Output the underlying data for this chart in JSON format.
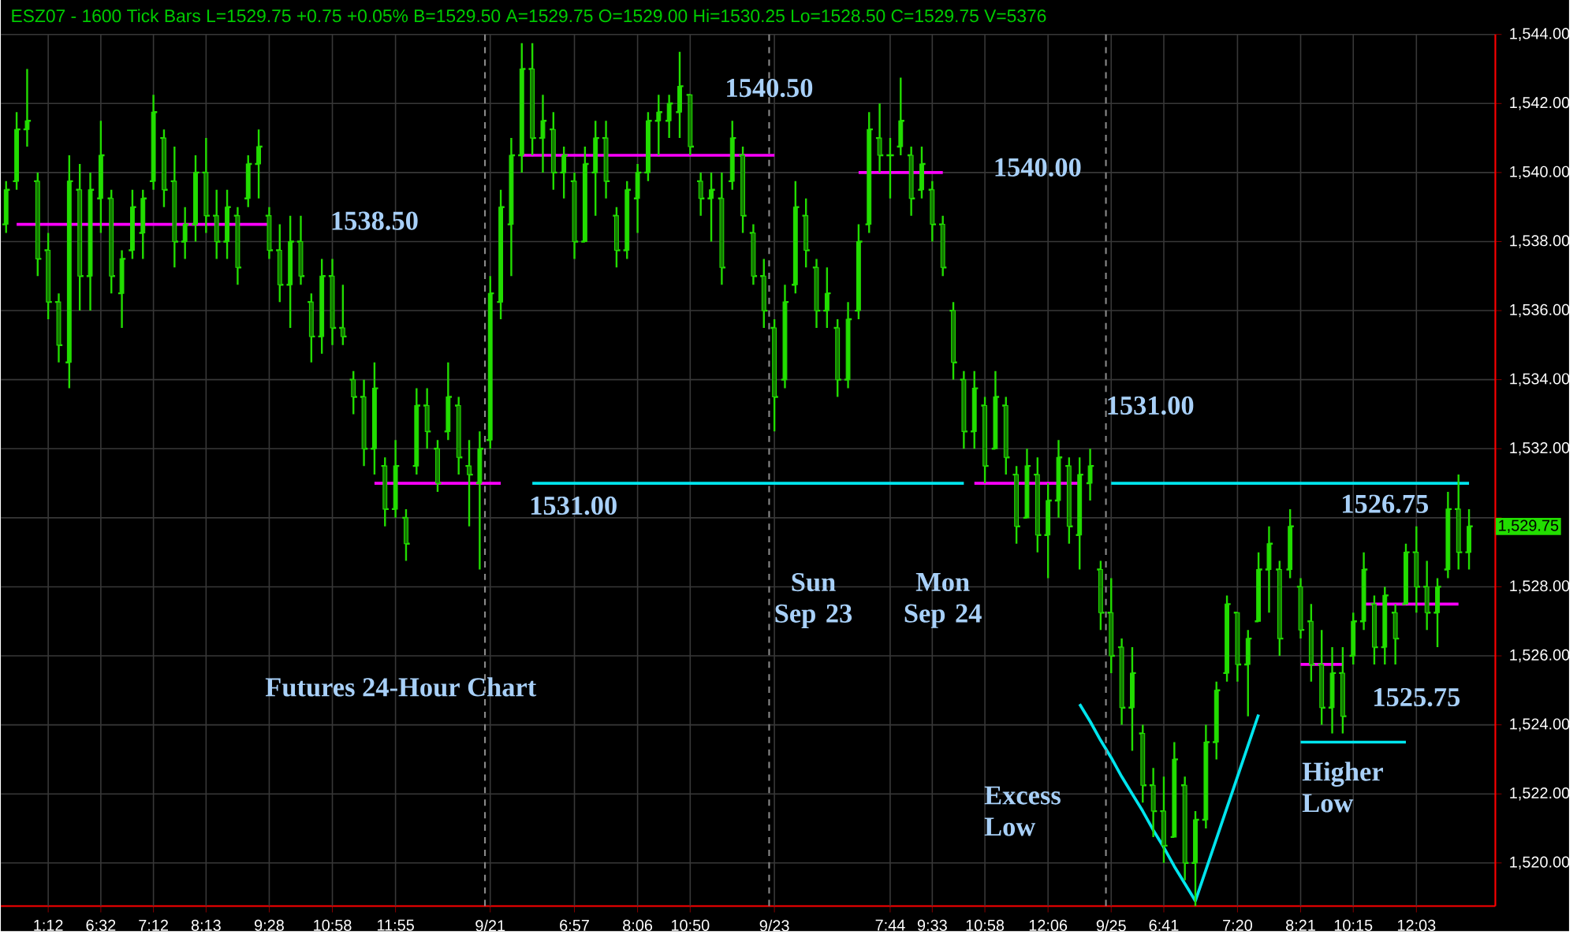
{
  "chart_data": {
    "type": "candlestick",
    "title": "ESZ07 - 1600 Tick Bars L=1529.75 +0.75 +0.05% B=1529.50 A=1529.75 O=1529.00 Hi=1530.25 Lo=1528.50 C=1529.75 V=5376",
    "subtitle": "Futures 24-Hour Chart",
    "categories": [
      null,
      null,
      null,
      null,
      "1:12",
      null,
      null,
      null,
      null,
      "6:32",
      null,
      null,
      null,
      null,
      "7:12",
      null,
      null,
      null,
      null,
      "8:13",
      null,
      null,
      null,
      null,
      null,
      "9:28",
      null,
      null,
      null,
      null,
      null,
      "10:58",
      null,
      null,
      null,
      null,
      null,
      "11:55",
      null,
      null,
      null,
      null,
      null,
      null,
      null,
      null,
      "9/21",
      null,
      null,
      null,
      null,
      null,
      null,
      null,
      "6:57",
      null,
      null,
      null,
      null,
      null,
      "8:06",
      null,
      null,
      null,
      null,
      "10:50",
      null,
      null,
      null,
      null,
      null,
      null,
      null,
      "9/23",
      null,
      null,
      null,
      null,
      null,
      null,
      null,
      null,
      null,
      null,
      "7:44",
      null,
      null,
      null,
      "9:33",
      null,
      null,
      null,
      null,
      "10:58",
      null,
      null,
      null,
      null,
      null,
      "12:06",
      null,
      null,
      null,
      null,
      null,
      "9/25",
      null,
      null,
      null,
      null,
      "6:41",
      null,
      null,
      null,
      null,
      null,
      null,
      "7:20",
      null,
      null,
      null,
      null,
      null,
      "8:21",
      null,
      null,
      null,
      null,
      "10:15",
      null,
      null,
      null,
      null,
      null,
      "12:03",
      null,
      null,
      null,
      null,
      null
    ],
    "color": "#22dd00",
    "ohlc": [
      [
        1538.5,
        1539.75,
        1538.25,
        1539.5
      ],
      [
        1539.75,
        1541.75,
        1539.5,
        1541.25
      ],
      [
        1541.25,
        1543,
        1540.75,
        1541.5
      ],
      [
        1539.75,
        1540,
        1537,
        1537.5
      ],
      [
        1537.75,
        1538.25,
        1535.75,
        1536.25
      ],
      [
        1536.25,
        1536.5,
        1534.5,
        1535
      ],
      [
        1534.5,
        1540.5,
        1533.75,
        1539.75
      ],
      [
        1539.5,
        1540.25,
        1536,
        1537
      ],
      [
        1537,
        1540,
        1536,
        1539.5
      ],
      [
        1539.25,
        1541.5,
        1538.25,
        1540.5
      ],
      [
        1539.25,
        1539.5,
        1536.5,
        1537
      ],
      [
        1536.5,
        1537.75,
        1535.5,
        1537.5
      ],
      [
        1537.75,
        1539.5,
        1537.5,
        1539
      ],
      [
        1538.25,
        1539.5,
        1537.5,
        1539.25
      ],
      [
        1539.75,
        1542.25,
        1539.5,
        1541.75
      ],
      [
        1541,
        1541.25,
        1539,
        1539.5
      ],
      [
        1539.75,
        1540.75,
        1537.25,
        1538
      ],
      [
        1538,
        1539,
        1537.5,
        1538.5
      ],
      [
        1538.5,
        1540.5,
        1538,
        1540
      ],
      [
        1540,
        1541,
        1538.25,
        1538.75
      ],
      [
        1538.75,
        1539.5,
        1537.5,
        1538
      ],
      [
        1538,
        1539.5,
        1537.5,
        1539
      ],
      [
        1538.75,
        1539,
        1536.75,
        1537.25
      ],
      [
        1539.25,
        1540.5,
        1539,
        1540.25
      ],
      [
        1540.25,
        1541.25,
        1539.25,
        1540.75
      ],
      [
        1538.75,
        1539,
        1537.5,
        1537.75
      ],
      [
        1537.75,
        1538.5,
        1536.25,
        1536.75
      ],
      [
        1536.75,
        1538.75,
        1535.5,
        1538
      ],
      [
        1538,
        1538.75,
        1536.75,
        1537
      ],
      [
        1536.25,
        1536.5,
        1534.5,
        1535.25
      ],
      [
        1535.25,
        1537.5,
        1534.75,
        1537
      ],
      [
        1537,
        1537.5,
        1535,
        1535.5
      ],
      [
        1535.5,
        1536.75,
        1535,
        1535.25
      ],
      [
        1534,
        1534.25,
        1533,
        1533.5
      ],
      [
        1533.5,
        1534,
        1531.5,
        1532
      ],
      [
        1532,
        1534.5,
        1531.25,
        1533.75
      ],
      [
        1531.5,
        1531.75,
        1529.75,
        1530.25
      ],
      [
        1530.25,
        1532.25,
        1530,
        1531.5
      ],
      [
        1530,
        1530.25,
        1528.75,
        1529.25
      ],
      [
        1531.5,
        1533.75,
        1531.25,
        1533.25
      ],
      [
        1533.25,
        1533.75,
        1532,
        1532.5
      ],
      [
        1532,
        1532.25,
        1530.75,
        1531
      ],
      [
        1532.5,
        1534.5,
        1532.25,
        1533.5
      ],
      [
        1533.25,
        1533.5,
        1531.25,
        1531.75
      ],
      [
        1531.5,
        1532.25,
        1529.75,
        1531.25
      ],
      [
        1531,
        1532.5,
        1528.5,
        1532
      ],
      [
        1532.25,
        1537,
        1532,
        1536.5
      ],
      [
        1536.25,
        1539.5,
        1535.75,
        1539
      ],
      [
        1538.5,
        1541,
        1537,
        1540.5
      ],
      [
        1540.5,
        1543.75,
        1540,
        1543
      ],
      [
        1543,
        1543.75,
        1540.5,
        1541
      ],
      [
        1541,
        1542.25,
        1540,
        1541.5
      ],
      [
        1541.25,
        1541.75,
        1539.5,
        1540
      ],
      [
        1540,
        1540.75,
        1539.25,
        1540.5
      ],
      [
        1539.75,
        1540,
        1537.5,
        1538
      ],
      [
        1538,
        1540.75,
        1538,
        1540.25
      ],
      [
        1540,
        1541.5,
        1538.75,
        1541
      ],
      [
        1541,
        1541.5,
        1539.25,
        1539.75
      ],
      [
        1538.75,
        1539,
        1537.25,
        1537.75
      ],
      [
        1537.75,
        1539.75,
        1537.5,
        1539.5
      ],
      [
        1539.25,
        1540.25,
        1538.25,
        1540
      ],
      [
        1540,
        1541.75,
        1539.75,
        1541.5
      ],
      [
        1541.5,
        1542.25,
        1540.5,
        1541.75
      ],
      [
        1541.5,
        1542.25,
        1541,
        1542
      ],
      [
        1541.75,
        1543.5,
        1541,
        1542.5
      ],
      [
        1542.25,
        1542.25,
        1540.5,
        1540.75
      ],
      [
        1539.75,
        1540,
        1538.75,
        1539.25
      ],
      [
        1539.25,
        1540,
        1538,
        1539.5
      ],
      [
        1539.25,
        1540,
        1536.75,
        1537.25
      ],
      [
        1539.75,
        1541.5,
        1539.5,
        1541
      ],
      [
        1540.5,
        1540.75,
        1538.25,
        1538.75
      ],
      [
        1538.25,
        1538.5,
        1536.75,
        1537
      ],
      [
        1537,
        1537.5,
        1535.5,
        1536
      ],
      [
        1535.5,
        1535.75,
        1532.5,
        1533.5
      ],
      [
        1534,
        1536.75,
        1533.75,
        1536.25
      ],
      [
        1536.75,
        1539.75,
        1536.5,
        1539
      ],
      [
        1538.75,
        1539.25,
        1537.25,
        1537.75
      ],
      [
        1537.25,
        1537.5,
        1535.5,
        1536
      ],
      [
        1536,
        1537.25,
        1535.5,
        1536.5
      ],
      [
        1535.5,
        1535.75,
        1533.5,
        1534
      ],
      [
        1534,
        1536.25,
        1533.75,
        1535.75
      ],
      [
        1536,
        1538.5,
        1535.75,
        1538
      ],
      [
        1538.5,
        1541.75,
        1538.25,
        1541.25
      ],
      [
        1541,
        1542,
        1540,
        1540.5
      ],
      [
        1540.5,
        1541,
        1539.25,
        1540.5
      ],
      [
        1540.75,
        1542.75,
        1540.5,
        1541.5
      ],
      [
        1540.5,
        1540.75,
        1538.75,
        1539.25
      ],
      [
        1539.5,
        1540.75,
        1539.25,
        1540.25
      ],
      [
        1539.5,
        1539.75,
        1538,
        1538.5
      ],
      [
        1538.5,
        1538.75,
        1537,
        1537.25
      ],
      [
        1536,
        1536.25,
        1534,
        1534.5
      ],
      [
        1534,
        1534.25,
        1532,
        1532.5
      ],
      [
        1532.5,
        1534.25,
        1532,
        1533.75
      ],
      [
        1533.25,
        1533.5,
        1531,
        1531.5
      ],
      [
        1532,
        1534.25,
        1532,
        1533.5
      ],
      [
        1533.25,
        1533.5,
        1531.25,
        1531.75
      ],
      [
        1531.25,
        1531.5,
        1529.25,
        1529.75
      ],
      [
        1530,
        1532,
        1530,
        1531.5
      ],
      [
        1531.25,
        1531.75,
        1529,
        1529.5
      ],
      [
        1529.5,
        1531,
        1528.25,
        1530.5
      ],
      [
        1530.5,
        1532.25,
        1530,
        1531.75
      ],
      [
        1531.5,
        1531.75,
        1529.25,
        1529.75
      ],
      [
        1529.5,
        1531.75,
        1528.5,
        1531.25
      ],
      [
        1531,
        1532,
        1530.5,
        1531.5
      ],
      [
        1528.5,
        1528.75,
        1526.75,
        1527.25
      ],
      [
        1527.25,
        1528.25,
        1525.5,
        1526
      ],
      [
        1526.25,
        1526.5,
        1524,
        1524.5
      ],
      [
        1524.5,
        1526.25,
        1523.25,
        1525.5
      ],
      [
        1523.75,
        1524,
        1521.75,
        1522.25
      ],
      [
        1522.25,
        1522.75,
        1520.75,
        1521.5
      ],
      [
        1521.5,
        1522.5,
        1520,
        1520.5
      ],
      [
        1520.75,
        1523.5,
        1520.75,
        1523
      ],
      [
        1522.25,
        1522.5,
        1519.5,
        1520
      ],
      [
        1520,
        1521.5,
        1518.75,
        1521.25
      ],
      [
        1521.25,
        1524,
        1521,
        1523.5
      ],
      [
        1523.5,
        1525.25,
        1523,
        1525
      ],
      [
        1525.5,
        1527.75,
        1525.25,
        1527.5
      ],
      [
        1527.25,
        1527.25,
        1525.25,
        1525.75
      ],
      [
        1525.75,
        1526.75,
        1524.25,
        1526.5
      ],
      [
        1527,
        1529,
        1527,
        1528.5
      ],
      [
        1528.5,
        1529.75,
        1527.25,
        1529.25
      ],
      [
        1528.5,
        1528.75,
        1526,
        1526.5
      ],
      [
        1528.5,
        1530.25,
        1528.25,
        1529.75
      ],
      [
        1528,
        1528.25,
        1526.5,
        1526.75
      ],
      [
        1527,
        1527.5,
        1525.25,
        1525.75
      ],
      [
        1525.75,
        1526.75,
        1524,
        1524.5
      ],
      [
        1524.5,
        1526.25,
        1523.75,
        1525.5
      ],
      [
        1525.5,
        1526.25,
        1523.75,
        1524.25
      ],
      [
        1526,
        1527.25,
        1525.75,
        1527
      ],
      [
        1527,
        1529,
        1526.75,
        1528.5
      ],
      [
        1527.5,
        1527.75,
        1525.75,
        1526.25
      ],
      [
        1526.25,
        1528,
        1525.75,
        1527.75
      ],
      [
        1527.25,
        1527.5,
        1525.75,
        1526.5
      ],
      [
        1527.5,
        1529.25,
        1527.5,
        1529
      ],
      [
        1529,
        1529.75,
        1527.25,
        1528
      ],
      [
        1528,
        1528.75,
        1526.75,
        1527.25
      ],
      [
        1527.25,
        1528.25,
        1526.25,
        1528
      ],
      [
        1528.5,
        1530.75,
        1528.25,
        1530.25
      ],
      [
        1530.25,
        1531.25,
        1528.5,
        1529
      ],
      [
        1529,
        1530.25,
        1528.5,
        1529.75
      ]
    ],
    "series": [
      {
        "type": "line",
        "color": "#ff00ff",
        "values": [
          null,
          1538.5,
          1538.5,
          1538.5,
          1538.5,
          1538.5,
          1538.5,
          1538.5,
          1538.5,
          1538.5,
          1538.5,
          1538.5,
          1538.5,
          1538.5,
          1538.5,
          1538.5,
          1538.5,
          1538.5,
          1538.5,
          1538.5,
          1538.5,
          1538.5,
          1538.5,
          1538.5,
          1538.5,
          1538.5,
          null,
          null,
          null,
          null,
          null,
          null,
          null,
          null,
          null,
          1531,
          1531,
          1531,
          1531,
          1531,
          1531,
          1531,
          1531,
          1531,
          1531,
          1531,
          1531,
          1531,
          null,
          1540.5,
          1540.5,
          1540.5,
          1540.5,
          1540.5,
          1540.5,
          1540.5,
          1540.5,
          1540.5,
          1540.5,
          1540.5,
          1540.5,
          1540.5,
          1540.5,
          1540.5,
          1540.5,
          1540.5,
          1540.5,
          1540.5,
          1540.5,
          1540.5,
          1540.5,
          1540.5,
          1540.5,
          1540.5,
          null,
          null,
          null,
          null,
          null,
          null,
          null,
          1540,
          1540,
          1540,
          1540,
          1540,
          1540,
          1540,
          1540,
          1540,
          null,
          null,
          1531,
          1531,
          1531,
          1531,
          1531,
          1531,
          1531,
          1531,
          1531,
          1531,
          1531,
          null,
          null,
          null,
          null,
          null,
          null,
          null,
          null,
          null,
          null,
          null,
          null,
          null,
          null,
          null,
          null,
          null,
          null,
          null,
          null,
          1525.75,
          1525.75,
          1525.75,
          1525.75,
          1525.75,
          null,
          1527.5,
          1527.5,
          1527.5,
          1527.5,
          1527.5,
          1527.5,
          1527.5,
          1527.5,
          1527.5,
          1527.5,
          null
        ]
      },
      {
        "type": "line",
        "color": "#00e5ee",
        "values": [
          null,
          null,
          null,
          null,
          null,
          null,
          null,
          null,
          null,
          null,
          null,
          null,
          null,
          null,
          null,
          null,
          null,
          null,
          null,
          null,
          null,
          null,
          null,
          null,
          null,
          null,
          null,
          null,
          null,
          null,
          null,
          null,
          null,
          null,
          null,
          null,
          null,
          null,
          null,
          null,
          null,
          null,
          null,
          null,
          null,
          null,
          null,
          null,
          null,
          null,
          1531,
          1531,
          1531,
          1531,
          1531,
          1531,
          1531,
          1531,
          1531,
          1531,
          1531,
          1531,
          1531,
          1531,
          1531,
          1531,
          1531,
          1531,
          1531,
          1531,
          1531,
          1531,
          1531,
          1531,
          1531,
          1531,
          1531,
          1531,
          1531,
          1531,
          1531,
          1531,
          1531,
          1531,
          1531,
          1531,
          1531,
          1531,
          1531,
          1531,
          1531,
          1531,
          null,
          null,
          null,
          null,
          null,
          null,
          null,
          null,
          null,
          null,
          null,
          null,
          null,
          1531,
          1531,
          1531,
          1531,
          1531,
          1531,
          1531,
          1531,
          1531,
          1531,
          1531,
          1531,
          1531,
          1531,
          1531,
          1531,
          1531,
          1531,
          1531,
          1531,
          1531,
          1531,
          1531,
          1531,
          1531,
          1531,
          1531,
          1531,
          1531,
          1531,
          1531,
          1531,
          1531,
          1531,
          1531
        ]
      },
      {
        "type": "line",
        "color": "#00e5ee",
        "values": [
          null,
          null,
          null,
          null,
          null,
          null,
          null,
          null,
          null,
          null,
          null,
          null,
          null,
          null,
          null,
          null,
          null,
          null,
          null,
          null,
          null,
          null,
          null,
          null,
          null,
          null,
          null,
          null,
          null,
          null,
          null,
          null,
          null,
          null,
          null,
          null,
          null,
          null,
          null,
          null,
          null,
          null,
          null,
          null,
          null,
          null,
          null,
          null,
          null,
          null,
          null,
          null,
          null,
          null,
          null,
          null,
          null,
          null,
          null,
          null,
          null,
          null,
          null,
          null,
          null,
          null,
          null,
          null,
          null,
          null,
          null,
          null,
          null,
          null,
          null,
          null,
          null,
          null,
          null,
          null,
          null,
          null,
          null,
          null,
          null,
          null,
          null,
          null,
          null,
          null,
          null,
          null,
          null,
          null,
          null,
          null,
          null,
          null,
          null,
          null,
          null,
          null,
          null,
          null,
          null,
          null,
          null,
          null,
          null,
          null,
          null,
          null,
          null,
          null,
          null,
          null,
          null,
          null,
          null,
          null,
          null,
          null,
          null,
          1523.5,
          1523.5,
          1523.5,
          1523.5,
          1523.5,
          1523.5,
          1523.5,
          1523.5,
          1523.5,
          1523.5,
          1523.5,
          null,
          null,
          null,
          null,
          null,
          null
        ]
      },
      {
        "type": "line",
        "color": "#00e5ee",
        "values": [
          null,
          null,
          null,
          null,
          null,
          null,
          null,
          null,
          null,
          null,
          null,
          null,
          null,
          null,
          null,
          null,
          null,
          null,
          null,
          null,
          null,
          null,
          null,
          null,
          null,
          null,
          null,
          null,
          null,
          null,
          null,
          null,
          null,
          null,
          null,
          null,
          null,
          null,
          null,
          null,
          null,
          null,
          null,
          null,
          null,
          null,
          null,
          null,
          null,
          null,
          null,
          null,
          null,
          null,
          null,
          null,
          null,
          null,
          null,
          null,
          null,
          null,
          null,
          null,
          null,
          null,
          null,
          null,
          null,
          null,
          null,
          null,
          null,
          null,
          null,
          null,
          null,
          null,
          null,
          null,
          null,
          null,
          null,
          null,
          null,
          null,
          null,
          null,
          null,
          null,
          null,
          null,
          null,
          null,
          null,
          null,
          null,
          null,
          null,
          null,
          null,
          null,
          1524.6,
          1524.1,
          1523.55,
          1523.05,
          1522.5,
          1522,
          1521.5,
          1520.95,
          1520.45,
          1519.9,
          1519.4,
          1518.9,
          1519.8,
          1520.7,
          1521.6,
          1522.5,
          1523.4,
          1524.3,
          null,
          null,
          null,
          null,
          null,
          null,
          null,
          null,
          null,
          null,
          null,
          null,
          null,
          null,
          null,
          null,
          null,
          null,
          null,
          null
        ]
      }
    ],
    "ylim": [
      1518.75,
      1544
    ],
    "yticks": [
      {
        "value": 1520,
        "label": "1,520.00"
      },
      {
        "value": 1522,
        "label": "1,522.00"
      },
      {
        "value": 1524,
        "label": "1,524.00"
      },
      {
        "value": 1526,
        "label": "1,526.00"
      },
      {
        "value": 1528,
        "label": "1,528.00"
      },
      {
        "value": 1530,
        "label": null
      },
      {
        "value": 1532,
        "label": "1,532.00"
      },
      {
        "value": 1534,
        "label": "1,534.00"
      },
      {
        "value": 1536,
        "label": "1,536.00"
      },
      {
        "value": 1538,
        "label": "1,538.00"
      },
      {
        "value": 1540,
        "label": "1,540.00"
      },
      {
        "value": 1542,
        "label": "1,542.00"
      },
      {
        "value": 1544,
        "label": "1,544.00"
      }
    ],
    "grid": true,
    "annotations": [
      "1538.50",
      "1531.00",
      "1540.50",
      "1540.00",
      "1531.00",
      "1526.75",
      "1525.75",
      "Sun Sep 23",
      "Mon Sep 24",
      "Excess Low",
      "Higher Low",
      "1,529.75"
    ]
  }
}
